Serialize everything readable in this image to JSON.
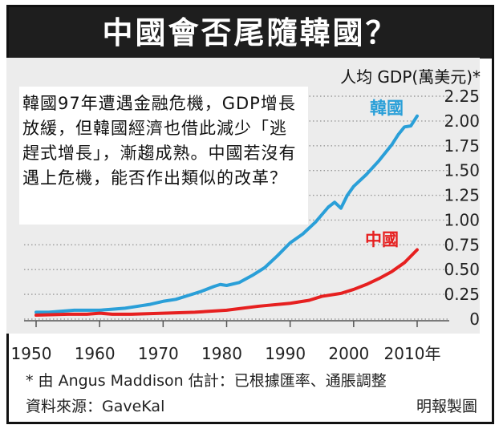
{
  "title": "中國會否尾隨韓國？",
  "note": "韓國97年遭遇金融危機，GDP增長放緩，但韓國經濟也借此減少「逃趕式增長」，漸趨成熟。中國若沒有遇上危機，能否作出類似的改革？",
  "footnote": "* 由 Angus Maddison 估計：已根據匯率、通脹調整",
  "source": "資料來源：GaveKal",
  "credit": "明報製圖",
  "colors": {
    "korea": "#2a9fd8",
    "china": "#e62020",
    "title_bg": "#1e1e1e",
    "plot_bg": "#ececec"
  },
  "chart_data": {
    "type": "line",
    "title": "中國會否尾隨韓國？",
    "ylabel": "人均 GDP(萬美元)*",
    "xlabel": "",
    "x_tick_labels": [
      "1950",
      "1960",
      "1970",
      "1980",
      "1990",
      "2000",
      "2010年"
    ],
    "x_ticks": [
      1950,
      1960,
      1970,
      1980,
      1990,
      2000,
      2010
    ],
    "y_tick_labels": [
      "0",
      "0.25",
      "0.50",
      "0.75",
      "1.00",
      "1.25",
      "1.50",
      "1.75",
      "2.00",
      "2.25"
    ],
    "y_ticks": [
      0,
      0.25,
      0.5,
      0.75,
      1.0,
      1.25,
      1.5,
      1.75,
      2.0,
      2.25
    ],
    "xlim": [
      1950,
      2010
    ],
    "ylim": [
      0,
      2.25
    ],
    "grid": true,
    "series": [
      {
        "name": "韓國",
        "x": [
          1950,
          1952,
          1954,
          1956,
          1958,
          1960,
          1962,
          1964,
          1966,
          1968,
          1970,
          1972,
          1974,
          1976,
          1978,
          1979,
          1980,
          1982,
          1984,
          1986,
          1988,
          1990,
          1992,
          1994,
          1996,
          1997,
          1998,
          1999,
          2000,
          2002,
          2004,
          2006,
          2007,
          2008,
          2009,
          2010
        ],
        "y": [
          0.07,
          0.07,
          0.08,
          0.09,
          0.09,
          0.09,
          0.1,
          0.11,
          0.13,
          0.15,
          0.18,
          0.2,
          0.24,
          0.28,
          0.33,
          0.35,
          0.34,
          0.37,
          0.44,
          0.52,
          0.64,
          0.77,
          0.86,
          0.98,
          1.13,
          1.18,
          1.12,
          1.25,
          1.34,
          1.46,
          1.6,
          1.76,
          1.86,
          1.94,
          1.95,
          2.05
        ]
      },
      {
        "name": "中國",
        "x": [
          1950,
          1955,
          1958,
          1960,
          1962,
          1965,
          1970,
          1975,
          1980,
          1985,
          1990,
          1993,
          1995,
          1998,
          2000,
          2002,
          2004,
          2006,
          2008,
          2010
        ],
        "y": [
          0.04,
          0.05,
          0.05,
          0.06,
          0.05,
          0.05,
          0.06,
          0.07,
          0.09,
          0.13,
          0.16,
          0.19,
          0.23,
          0.26,
          0.3,
          0.35,
          0.41,
          0.48,
          0.57,
          0.7
        ]
      }
    ]
  }
}
